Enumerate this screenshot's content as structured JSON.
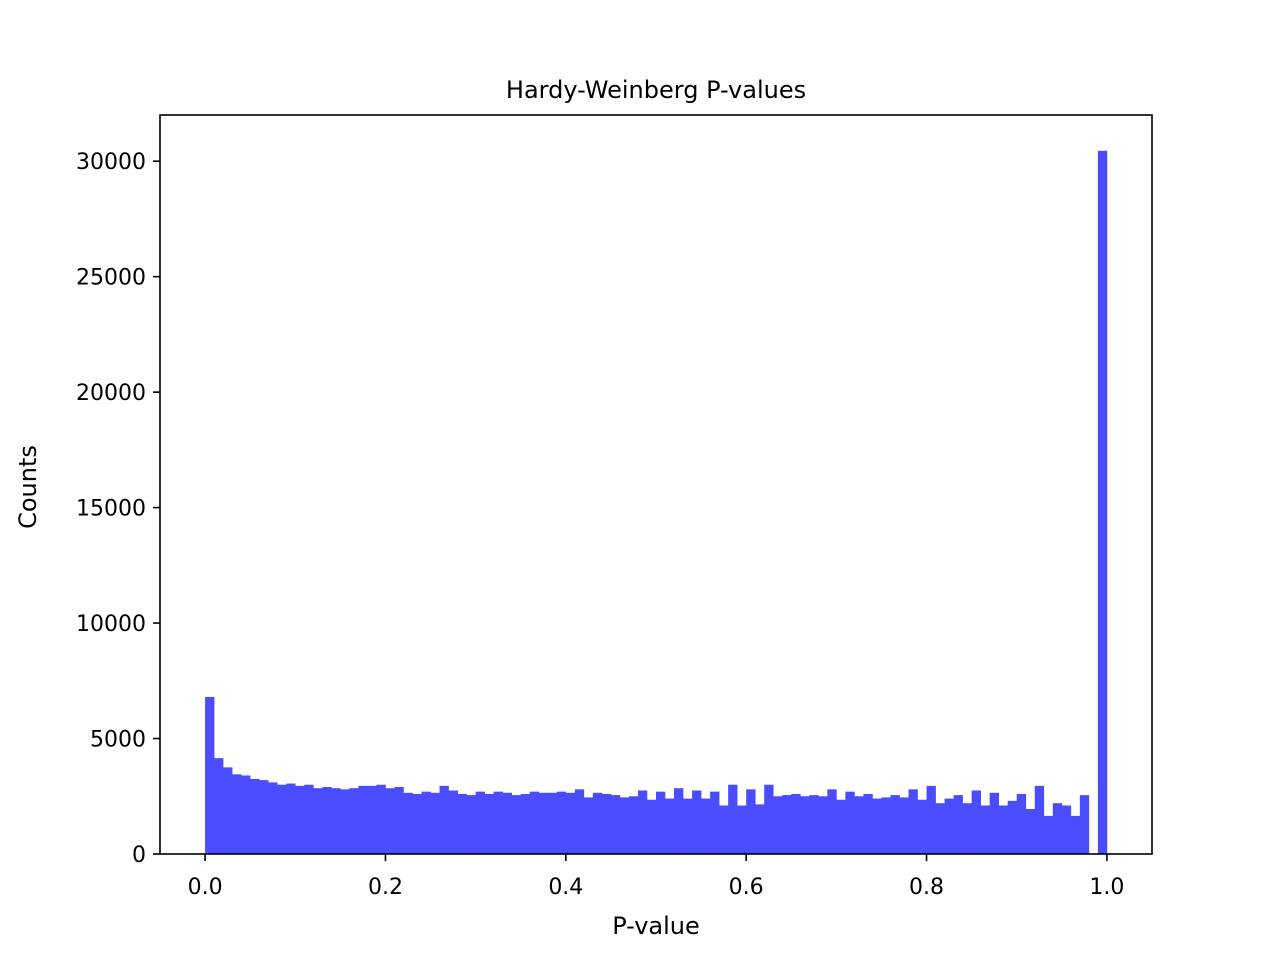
{
  "chart_data": {
    "type": "bar",
    "title": "Hardy-Weinberg P-values",
    "xlabel": "P-value",
    "ylabel": "Counts",
    "xlim": [
      -0.05,
      1.05
    ],
    "ylim": [
      0,
      32000
    ],
    "x_ticks": [
      "0.0",
      "0.2",
      "0.4",
      "0.6",
      "0.8",
      "1.0"
    ],
    "y_ticks": [
      "0",
      "5000",
      "10000",
      "15000",
      "20000",
      "25000",
      "30000"
    ],
    "grid": false,
    "legend": false,
    "bar_color": "#4b4bff",
    "bin_width": 0.01,
    "bins": [
      0.0,
      0.01,
      0.02,
      0.03,
      0.04,
      0.05,
      0.06,
      0.07,
      0.08,
      0.09,
      0.1,
      0.11,
      0.12,
      0.13,
      0.14,
      0.15,
      0.16,
      0.17,
      0.18,
      0.19,
      0.2,
      0.21,
      0.22,
      0.23,
      0.24,
      0.25,
      0.26,
      0.27,
      0.28,
      0.29,
      0.3,
      0.31,
      0.32,
      0.33,
      0.34,
      0.35,
      0.36,
      0.37,
      0.38,
      0.39,
      0.4,
      0.41,
      0.42,
      0.43,
      0.44,
      0.45,
      0.46,
      0.47,
      0.48,
      0.49,
      0.5,
      0.51,
      0.52,
      0.53,
      0.54,
      0.55,
      0.56,
      0.57,
      0.58,
      0.59,
      0.6,
      0.61,
      0.62,
      0.63,
      0.64,
      0.65,
      0.66,
      0.67,
      0.68,
      0.69,
      0.7,
      0.71,
      0.72,
      0.73,
      0.74,
      0.75,
      0.76,
      0.77,
      0.78,
      0.79,
      0.8,
      0.81,
      0.82,
      0.83,
      0.84,
      0.85,
      0.86,
      0.87,
      0.88,
      0.89,
      0.9,
      0.91,
      0.92,
      0.93,
      0.94,
      0.95,
      0.96,
      0.97,
      0.98,
      0.99
    ],
    "values": [
      6800,
      4150,
      3750,
      3450,
      3400,
      3250,
      3200,
      3100,
      3000,
      3050,
      2950,
      3000,
      2850,
      2900,
      2850,
      2800,
      2850,
      2950,
      2950,
      3000,
      2850,
      2900,
      2650,
      2600,
      2700,
      2650,
      2950,
      2750,
      2600,
      2550,
      2700,
      2600,
      2700,
      2650,
      2550,
      2600,
      2700,
      2650,
      2650,
      2700,
      2650,
      2800,
      2450,
      2650,
      2600,
      2550,
      2450,
      2500,
      2750,
      2350,
      2700,
      2400,
      2850,
      2400,
      2750,
      2400,
      2700,
      2100,
      3000,
      2100,
      2800,
      2150,
      3000,
      2500,
      2550,
      2600,
      2500,
      2550,
      2500,
      2800,
      2350,
      2700,
      2500,
      2600,
      2400,
      2450,
      2550,
      2450,
      2800,
      2350,
      2950,
      2200,
      2400,
      2550,
      2200,
      2750,
      2100,
      2650,
      2100,
      2300,
      2600,
      1950,
      2950,
      1650,
      2200,
      2100,
      1650,
      2550,
      0,
      30450
    ]
  }
}
